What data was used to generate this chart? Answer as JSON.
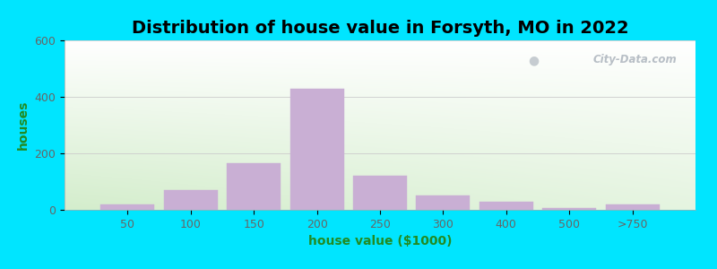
{
  "title": "Distribution of house value in Forsyth, MO in 2022",
  "xlabel": "house value ($1000)",
  "ylabel": "houses",
  "bar_color": "#c9afd4",
  "bar_edgecolor": "#c9afd4",
  "background_outer": "#00e5ff",
  "ylim": [
    0,
    600
  ],
  "yticks": [
    0,
    200,
    400,
    600
  ],
  "bin_labels": [
    "50",
    "100",
    "150",
    "200",
    "250",
    "300",
    "400",
    "500",
    ">750"
  ],
  "bar_heights": [
    20,
    70,
    165,
    430,
    120,
    50,
    30,
    5,
    20
  ],
  "title_fontsize": 14,
  "axis_label_fontsize": 10,
  "tick_fontsize": 9,
  "tick_color": "#666666",
  "label_color": "#228B22",
  "watermark_text": "City-Data.com"
}
